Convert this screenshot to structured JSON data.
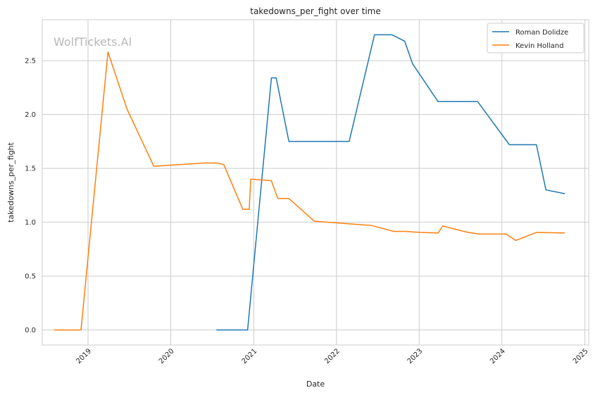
{
  "chart_data": {
    "type": "line",
    "title": "takedowns_per_fight over time",
    "xlabel": "Date",
    "ylabel": "takedowns_per_fight",
    "watermark": "WolfTickets.AI",
    "x_type": "date",
    "xlim": [
      "2018-06-13",
      "2025-01-18"
    ],
    "ylim": [
      -0.14,
      2.88
    ],
    "x_ticks": [
      "2019",
      "2020",
      "2021",
      "2022",
      "2023",
      "2024",
      "2025"
    ],
    "y_ticks": [
      "0.0",
      "0.5",
      "1.0",
      "1.5",
      "2.0",
      "2.5"
    ],
    "grid": true,
    "legend_position": "top-right",
    "series": [
      {
        "name": "Roman Dolidze",
        "color": "#1f77b4",
        "points": [
          {
            "x": "2020-07-20",
            "y": 0.0
          },
          {
            "x": "2020-12-05",
            "y": 0.0
          },
          {
            "x": "2021-03-20",
            "y": 2.34
          },
          {
            "x": "2021-04-10",
            "y": 2.34
          },
          {
            "x": "2021-06-05",
            "y": 1.75
          },
          {
            "x": "2022-02-26",
            "y": 1.75
          },
          {
            "x": "2022-06-18",
            "y": 2.74
          },
          {
            "x": "2022-09-03",
            "y": 2.74
          },
          {
            "x": "2022-10-29",
            "y": 2.68
          },
          {
            "x": "2022-12-03",
            "y": 2.47
          },
          {
            "x": "2023-03-25",
            "y": 2.12
          },
          {
            "x": "2023-09-16",
            "y": 2.12
          },
          {
            "x": "2024-02-03",
            "y": 1.72
          },
          {
            "x": "2024-06-01",
            "y": 1.72
          },
          {
            "x": "2024-07-13",
            "y": 1.3
          },
          {
            "x": "2024-10-05",
            "y": 1.265
          }
        ]
      },
      {
        "name": "Kevin Holland",
        "color": "#ff7f0e",
        "points": [
          {
            "x": "2018-08-04",
            "y": 0.0
          },
          {
            "x": "2018-12-01",
            "y": 0.0
          },
          {
            "x": "2019-03-30",
            "y": 2.58
          },
          {
            "x": "2019-06-22",
            "y": 2.05
          },
          {
            "x": "2019-10-18",
            "y": 1.52
          },
          {
            "x": "2020-05-30",
            "y": 1.55
          },
          {
            "x": "2020-07-25",
            "y": 1.55
          },
          {
            "x": "2020-08-22",
            "y": 1.535
          },
          {
            "x": "2020-11-14",
            "y": 1.12
          },
          {
            "x": "2020-12-12",
            "y": 1.12
          },
          {
            "x": "2020-12-19",
            "y": 1.4
          },
          {
            "x": "2021-03-20",
            "y": 1.385
          },
          {
            "x": "2021-04-17",
            "y": 1.22
          },
          {
            "x": "2021-06-05",
            "y": 1.22
          },
          {
            "x": "2021-09-25",
            "y": 1.01
          },
          {
            "x": "2022-06-04",
            "y": 0.97
          },
          {
            "x": "2022-09-10",
            "y": 0.915
          },
          {
            "x": "2022-10-29",
            "y": 0.915
          },
          {
            "x": "2023-01-07",
            "y": 0.905
          },
          {
            "x": "2023-03-25",
            "y": 0.9
          },
          {
            "x": "2023-04-15",
            "y": 0.965
          },
          {
            "x": "2023-08-05",
            "y": 0.905
          },
          {
            "x": "2023-09-23",
            "y": 0.89
          },
          {
            "x": "2024-01-20",
            "y": 0.89
          },
          {
            "x": "2024-03-02",
            "y": 0.83
          },
          {
            "x": "2024-06-01",
            "y": 0.905
          },
          {
            "x": "2024-10-05",
            "y": 0.9
          }
        ]
      }
    ]
  }
}
